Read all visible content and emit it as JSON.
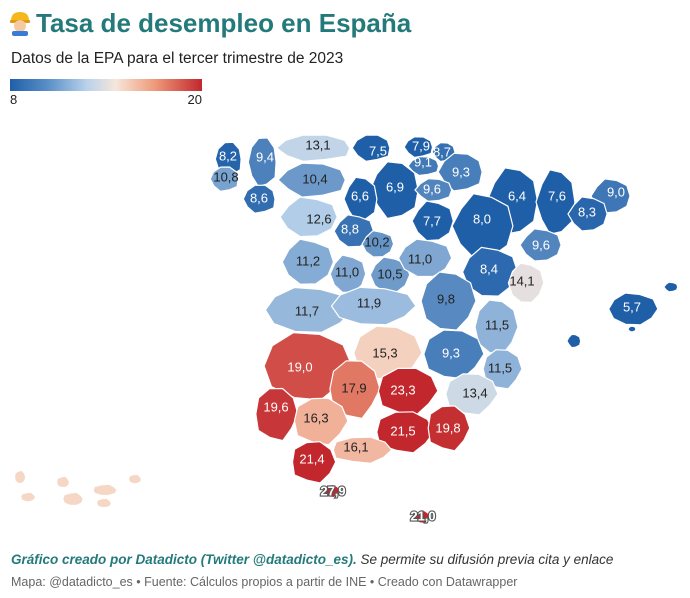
{
  "header": {
    "title": "Tasa de desempleo en España",
    "subtitle": "Datos de la EPA para el tercer trimestre de 2023"
  },
  "legend": {
    "min_label": "8",
    "max_label": "20",
    "min_value": 8,
    "max_value": 20
  },
  "colors": {
    "low": "#1f5fa8",
    "mid_low": "#b8d2ea",
    "neutral": "#f6e6db",
    "mid_high": "#ef9b7c",
    "high": "#c1272d",
    "title": "#247a7a"
  },
  "provinces": [
    {
      "key": "coruna",
      "value": "8,2"
    },
    {
      "key": "lugo",
      "value": "9,4"
    },
    {
      "key": "pontevedra",
      "value": "10,8"
    },
    {
      "key": "ourense",
      "value": "8,6"
    },
    {
      "key": "asturias",
      "value": "13,1"
    },
    {
      "key": "cantabria",
      "value": "7,5"
    },
    {
      "key": "bizkaia",
      "value": "7,9"
    },
    {
      "key": "gipuzkoa",
      "value": "8,7"
    },
    {
      "key": "alava",
      "value": "9,1"
    },
    {
      "key": "navarra",
      "value": "9,3"
    },
    {
      "key": "leon",
      "value": "10,4"
    },
    {
      "key": "burgos",
      "value": "6,9"
    },
    {
      "key": "la_rioja",
      "value": "9,6"
    },
    {
      "key": "palencia",
      "value": "6,6"
    },
    {
      "key": "huesca",
      "value": "6,4"
    },
    {
      "key": "lleida",
      "value": "7,6"
    },
    {
      "key": "girona",
      "value": "9,0"
    },
    {
      "key": "barcelona",
      "value": "8,3"
    },
    {
      "key": "tarragona",
      "value": "9,6"
    },
    {
      "key": "zaragoza",
      "value": "8,0"
    },
    {
      "key": "soria",
      "value": "7,7"
    },
    {
      "key": "zamora",
      "value": "12,6"
    },
    {
      "key": "valladolid",
      "value": "8,8"
    },
    {
      "key": "segovia",
      "value": "10,2"
    },
    {
      "key": "salamanca",
      "value": "11,2"
    },
    {
      "key": "avila",
      "value": "11,0"
    },
    {
      "key": "madrid",
      "value": "10,5"
    },
    {
      "key": "guadalajara",
      "value": "11,0"
    },
    {
      "key": "teruel",
      "value": "8,4"
    },
    {
      "key": "castellon",
      "value": "14,1"
    },
    {
      "key": "baleares",
      "value": "5,7"
    },
    {
      "key": "caceres",
      "value": "11,7"
    },
    {
      "key": "toledo",
      "value": "11,9"
    },
    {
      "key": "cuenca",
      "value": "9,8"
    },
    {
      "key": "valencia",
      "value": "11,5"
    },
    {
      "key": "badajoz",
      "value": "19,0"
    },
    {
      "key": "ciudad_real",
      "value": "15,3"
    },
    {
      "key": "albacete",
      "value": "9,3"
    },
    {
      "key": "alicante",
      "value": "11,5"
    },
    {
      "key": "murcia",
      "value": "13,4"
    },
    {
      "key": "cordoba",
      "value": "17,9"
    },
    {
      "key": "jaen",
      "value": "23,3"
    },
    {
      "key": "huelva",
      "value": "19,6"
    },
    {
      "key": "sevilla",
      "value": "16,3"
    },
    {
      "key": "granada",
      "value": "21,5"
    },
    {
      "key": "almeria",
      "value": "19,8"
    },
    {
      "key": "malaga",
      "value": "16,1"
    },
    {
      "key": "cadiz",
      "value": "21,4"
    },
    {
      "key": "ceuta",
      "value": "27,9"
    },
    {
      "key": "melilla",
      "value": "21,0"
    }
  ],
  "credit": {
    "strong": "Gráfico creado por Datadicto (Twitter @datadicto_es).",
    "rest": " Se permite su difusión previa cita y enlace"
  },
  "footer": "Mapa: @datadicto_es • Fuente: Cálculos propios a partir de INE • Creado con Datawrapper"
}
